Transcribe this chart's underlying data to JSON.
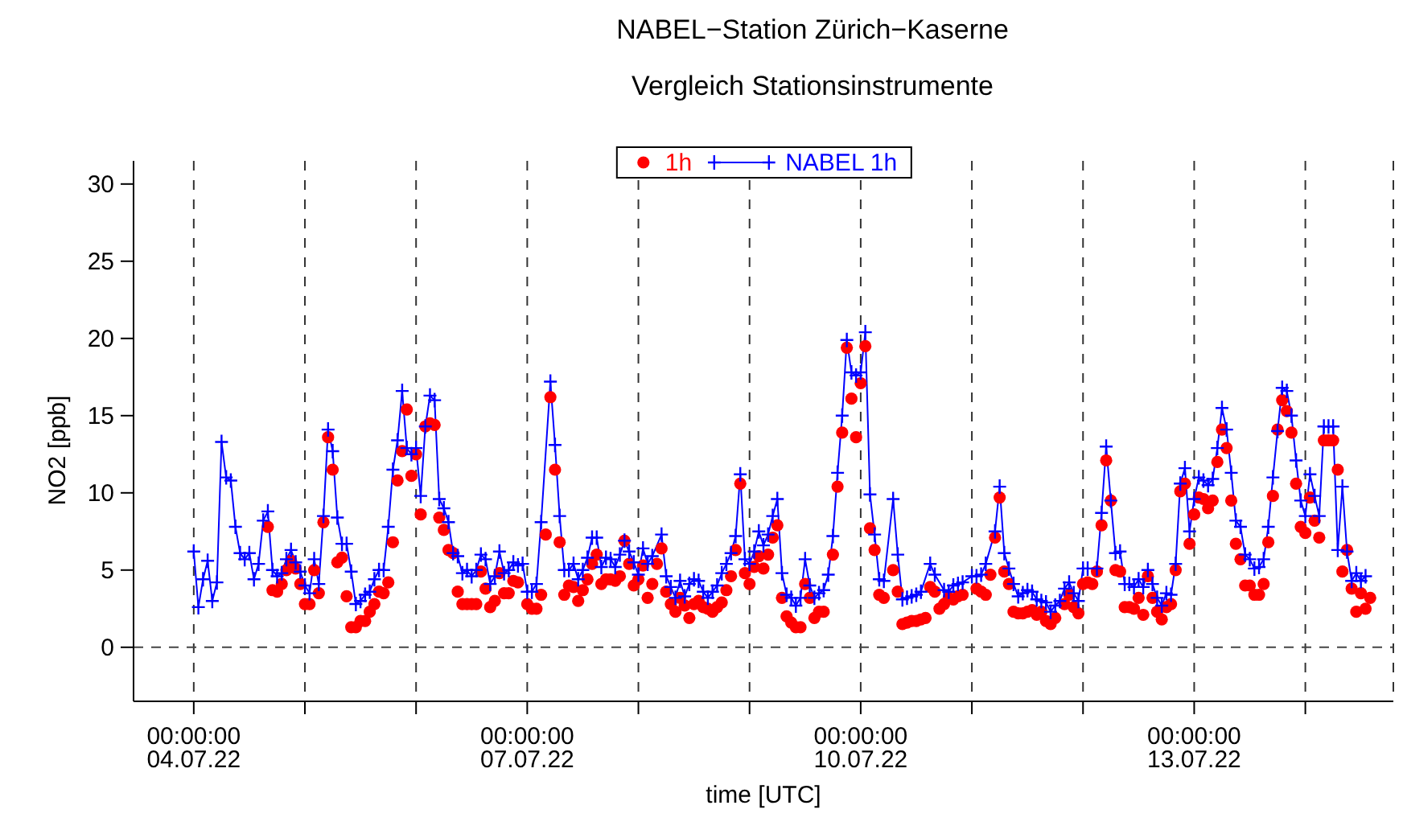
{
  "chart_data": {
    "type": "line",
    "title": "NABEL−Station Zürich−Kaserne",
    "subtitle": "Vergleich Stationsinstrumente",
    "xlabel": "time [UTC]",
    "ylabel": "NO2 [ppb]",
    "xlim": [
      "--07-03T11:00",
      "--07-14T19:00"
    ],
    "xticks": [
      {
        "value": "--07-04T00:00",
        "label": "00:00:00\n04.07.22"
      },
      {
        "value": "--07-05T00:00",
        "label": null
      },
      {
        "value": "--07-06T00:00",
        "label": null
      },
      {
        "value": "--07-07T00:00",
        "label": "00:00:00\n07.07.22"
      },
      {
        "value": "--07-08T00:00",
        "label": null
      },
      {
        "value": "--07-09T00:00",
        "label": null
      },
      {
        "value": "--07-10T00:00",
        "label": "00:00:00\n10.07.22"
      },
      {
        "value": "--07-11T00:00",
        "label": null
      },
      {
        "value": "--07-12T00:00",
        "label": null
      },
      {
        "value": "--07-13T00:00",
        "label": "00:00:00\n13.07.22"
      },
      {
        "value": "--07-14T00:00",
        "label": null
      }
    ],
    "ylim": [
      -3.5,
      31.5
    ],
    "yticks": [
      0,
      5,
      10,
      15,
      20,
      25,
      30
    ],
    "grid": "x",
    "legend": "top",
    "ref_lines": [
      {
        "axis": "y",
        "value": 0,
        "line_style": "dashed",
        "color": "#444444"
      }
    ],
    "series": [
      {
        "name": "1h",
        "type": "scatter",
        "marker": "circle",
        "color": "#ff0000",
        "x": [
          "--07-04T16:00",
          "--07-04T17:00",
          "--07-04T18:00",
          "--07-04T19:00",
          "--07-04T20:00",
          "--07-04T21:00",
          "--07-04T22:00",
          "--07-04T23:00",
          "--07-05T00:00",
          "--07-05T01:00",
          "--07-05T02:00",
          "--07-05T03:00",
          "--07-05T04:00",
          "--07-05T05:00",
          "--07-05T06:00",
          "--07-05T07:00",
          "--07-05T08:00",
          "--07-05T09:00",
          "--07-05T10:00",
          "--07-05T11:00",
          "--07-05T12:00",
          "--07-05T13:00",
          "--07-05T14:00",
          "--07-05T15:00",
          "--07-05T16:00",
          "--07-05T17:00",
          "--07-05T18:00",
          "--07-05T19:00",
          "--07-05T20:00",
          "--07-05T21:00",
          "--07-05T22:00",
          "--07-05T23:00",
          "--07-06T00:00",
          "--07-06T01:00",
          "--07-06T02:00",
          "--07-06T03:00",
          "--07-06T04:00",
          "--07-06T05:00",
          "--07-06T06:00",
          "--07-06T07:00",
          "--07-06T08:00",
          "--07-06T09:00",
          "--07-06T10:00",
          "--07-06T11:00",
          "--07-06T12:00",
          "--07-06T13:00",
          "--07-06T14:00",
          "--07-06T15:00",
          "--07-06T16:00",
          "--07-06T17:00",
          "--07-06T18:00",
          "--07-06T19:00",
          "--07-06T20:00",
          "--07-06T21:00",
          "--07-06T22:00",
          "--07-07T00:00",
          "--07-07T01:00",
          "--07-07T02:00",
          "--07-07T03:00",
          "--07-07T04:00",
          "--07-07T05:00",
          "--07-07T06:00",
          "--07-07T07:00",
          "--07-07T08:00",
          "--07-07T09:00",
          "--07-07T10:00",
          "--07-07T11:00",
          "--07-07T12:00",
          "--07-07T13:00",
          "--07-07T14:00",
          "--07-07T15:00",
          "--07-07T16:00",
          "--07-07T17:00",
          "--07-07T18:00",
          "--07-07T19:00",
          "--07-07T20:00",
          "--07-07T21:00",
          "--07-07T22:00",
          "--07-07T23:00",
          "--07-08T00:00",
          "--07-08T01:00",
          "--07-08T02:00",
          "--07-08T03:00",
          "--07-08T04:00",
          "--07-08T05:00",
          "--07-08T06:00",
          "--07-08T07:00",
          "--07-08T08:00",
          "--07-08T09:00",
          "--07-08T10:00",
          "--07-08T11:00",
          "--07-08T12:00",
          "--07-08T13:00",
          "--07-08T14:00",
          "--07-08T15:00",
          "--07-08T16:00",
          "--07-08T17:00",
          "--07-08T18:00",
          "--07-08T19:00",
          "--07-08T20:00",
          "--07-08T21:00",
          "--07-08T22:00",
          "--07-08T23:00",
          "--07-09T00:00",
          "--07-09T01:00",
          "--07-09T02:00",
          "--07-09T03:00",
          "--07-09T04:00",
          "--07-09T05:00",
          "--07-09T06:00",
          "--07-09T07:00",
          "--07-09T08:00",
          "--07-09T09:00",
          "--07-09T10:00",
          "--07-09T11:00",
          "--07-09T12:00",
          "--07-09T13:00",
          "--07-09T14:00",
          "--07-09T15:00",
          "--07-09T16:00",
          "--07-09T18:00",
          "--07-09T19:00",
          "--07-09T20:00",
          "--07-09T21:00",
          "--07-09T22:00",
          "--07-09T23:00",
          "--07-10T00:00",
          "--07-10T01:00",
          "--07-10T02:00",
          "--07-10T03:00",
          "--07-10T04:00",
          "--07-10T05:00",
          "--07-10T07:00",
          "--07-10T08:00",
          "--07-10T09:00",
          "--07-10T10:00",
          "--07-10T11:00",
          "--07-10T12:00",
          "--07-10T13:00",
          "--07-10T14:00",
          "--07-10T15:00",
          "--07-10T16:00",
          "--07-10T17:00",
          "--07-10T18:00",
          "--07-10T19:00",
          "--07-10T20:00",
          "--07-10T21:00",
          "--07-10T22:00",
          "--07-11T01:00",
          "--07-11T02:00",
          "--07-11T03:00",
          "--07-11T04:00",
          "--07-11T05:00",
          "--07-11T06:00",
          "--07-11T07:00",
          "--07-11T08:00",
          "--07-11T09:00",
          "--07-11T10:00",
          "--07-11T11:00",
          "--07-11T12:00",
          "--07-11T13:00",
          "--07-11T14:00",
          "--07-11T15:00",
          "--07-11T16:00",
          "--07-11T17:00",
          "--07-11T18:00",
          "--07-11T20:00",
          "--07-11T21:00",
          "--07-11T22:00",
          "--07-11T23:00",
          "--07-12T00:00",
          "--07-12T01:00",
          "--07-12T02:00",
          "--07-12T03:00",
          "--07-12T04:00",
          "--07-12T05:00",
          "--07-12T06:00",
          "--07-12T07:00",
          "--07-12T08:00",
          "--07-12T09:00",
          "--07-12T10:00",
          "--07-12T11:00",
          "--07-12T12:00",
          "--07-12T13:00",
          "--07-12T14:00",
          "--07-12T15:00",
          "--07-12T16:00",
          "--07-12T17:00",
          "--07-12T18:00",
          "--07-12T19:00",
          "--07-12T20:00",
          "--07-12T21:00",
          "--07-12T22:00",
          "--07-12T23:00",
          "--07-13T00:00",
          "--07-13T01:00",
          "--07-13T02:00",
          "--07-13T03:00",
          "--07-13T04:00",
          "--07-13T05:00",
          "--07-13T06:00",
          "--07-13T07:00",
          "--07-13T08:00",
          "--07-13T09:00",
          "--07-13T10:00",
          "--07-13T11:00",
          "--07-13T12:00",
          "--07-13T13:00",
          "--07-13T14:00",
          "--07-13T15:00",
          "--07-13T16:00",
          "--07-13T17:00",
          "--07-13T18:00",
          "--07-13T19:00",
          "--07-13T20:00",
          "--07-13T21:00",
          "--07-13T22:00",
          "--07-13T23:00",
          "--07-14T00:00",
          "--07-14T01:00",
          "--07-14T02:00",
          "--07-14T03:00",
          "--07-14T04:00",
          "--07-14T05:00",
          "--07-14T06:00",
          "--07-14T07:00",
          "--07-14T08:00",
          "--07-14T09:00",
          "--07-14T10:00",
          "--07-14T11:00",
          "--07-14T12:00",
          "--07-14T13:00",
          "--07-14T14:00"
        ],
        "values": [
          7.8,
          3.7,
          3.6,
          4.1,
          5.0,
          5.6,
          5.1,
          4.1,
          2.8,
          2.8,
          5.0,
          3.5,
          8.1,
          13.6,
          11.5,
          5.5,
          5.8,
          3.3,
          1.3,
          1.3,
          1.7,
          1.7,
          2.3,
          2.8,
          3.6,
          3.5,
          4.2,
          6.8,
          10.8,
          12.7,
          15.4,
          11.1,
          12.5,
          8.6,
          14.3,
          14.5,
          14.4,
          8.4,
          7.6,
          6.3,
          6.1,
          3.6,
          2.8,
          2.8,
          2.8,
          2.8,
          4.9,
          3.8,
          2.6,
          3.0,
          4.8,
          3.5,
          3.5,
          4.3,
          4.2,
          2.8,
          2.5,
          2.5,
          3.4,
          7.3,
          16.2,
          11.5,
          6.8,
          3.4,
          4.0,
          3.9,
          3.0,
          3.7,
          4.4,
          5.4,
          6.0,
          4.1,
          4.4,
          4.4,
          4.3,
          4.6,
          6.9,
          5.4,
          4.0,
          4.4,
          5.3,
          3.2,
          4.1,
          5.4,
          6.4,
          3.6,
          2.8,
          2.3,
          3.2,
          2.7,
          1.9,
          2.8,
          3.0,
          2.6,
          2.5,
          2.3,
          2.6,
          2.9,
          3.7,
          4.6,
          6.3,
          10.6,
          4.8,
          4.1,
          5.2,
          5.9,
          5.1,
          6.0,
          7.1,
          7.9,
          3.2,
          2.0,
          1.6,
          1.3,
          1.3,
          4.1,
          3.2,
          1.9,
          2.3,
          2.3,
          6.0,
          10.4,
          13.9,
          19.4,
          16.1,
          13.6,
          17.1,
          19.5,
          7.7,
          6.3,
          3.4,
          3.2,
          5.0,
          3.6,
          1.5,
          1.6,
          1.7,
          1.7,
          1.8,
          1.9,
          3.9,
          3.6,
          2.5,
          2.8,
          3.2,
          3.1,
          3.3,
          3.4,
          3.8,
          3.6,
          3.4,
          4.7,
          7.1,
          9.7,
          4.9,
          4.1,
          2.3,
          2.2,
          2.2,
          2.3,
          2.4,
          2.1,
          2.3,
          1.7,
          1.5,
          1.9,
          2.8,
          3.4,
          2.6,
          2.2,
          4.1,
          4.2,
          4.1,
          4.9,
          7.9,
          12.1,
          9.5,
          5.0,
          4.9,
          2.6,
          2.6,
          2.5,
          3.2,
          2.1,
          4.6,
          3.2,
          2.3,
          1.8,
          2.6,
          2.8,
          5.0,
          10.1,
          10.6,
          6.7,
          8.6,
          9.7,
          9.6,
          9.0,
          9.5,
          12.0,
          14.1,
          12.9,
          9.5,
          6.7,
          5.7,
          4.0,
          4.0,
          3.4,
          3.4,
          4.1,
          6.8,
          9.8,
          14.1,
          16.0,
          15.3,
          13.9,
          10.6,
          7.8,
          7.4,
          9.7,
          8.2,
          7.1,
          13.4,
          13.4,
          13.4,
          11.5,
          4.9,
          6.3,
          3.8,
          2.3,
          3.5,
          2.5,
          3.2
        ]
      },
      {
        "name": "NABEL 1h",
        "marker": "cross",
        "line_style": "solid",
        "color": "#0000ff",
        "x": [
          "--07-04T00:00",
          "--07-04T01:00",
          "--07-04T02:00",
          "--07-04T03:00",
          "--07-04T04:00",
          "--07-04T05:00",
          "--07-04T06:00",
          "--07-04T07:00",
          "--07-04T08:00",
          "--07-04T09:00",
          "--07-04T10:00",
          "--07-04T11:00",
          "--07-04T12:00",
          "--07-04T13:00",
          "--07-04T14:00",
          "--07-04T15:00",
          "--07-04T16:00",
          "--07-04T17:00",
          "--07-04T18:00",
          "--07-04T19:00",
          "--07-04T20:00",
          "--07-04T21:00",
          "--07-04T22:00",
          "--07-04T23:00",
          "--07-05T00:00",
          "--07-05T01:00",
          "--07-05T02:00",
          "--07-05T03:00",
          "--07-05T04:00",
          "--07-05T05:00",
          "--07-05T06:00",
          "--07-05T07:00",
          "--07-05T08:00",
          "--07-05T09:00",
          "--07-05T10:00",
          "--07-05T11:00",
          "--07-05T12:00",
          "--07-05T13:00",
          "--07-05T14:00",
          "--07-05T15:00",
          "--07-05T16:00",
          "--07-05T17:00",
          "--07-05T18:00",
          "--07-05T19:00",
          "--07-05T20:00",
          "--07-05T21:00",
          "--07-05T22:00",
          "--07-05T23:00",
          "--07-06T00:00",
          "--07-06T01:00",
          "--07-06T02:00",
          "--07-06T03:00",
          "--07-06T04:00",
          "--07-06T05:00",
          "--07-06T06:00",
          "--07-06T07:00",
          "--07-06T08:00",
          "--07-06T09:00",
          "--07-06T10:00",
          "--07-06T11:00",
          "--07-06T12:00",
          "--07-06T13:00",
          "--07-06T14:00",
          "--07-06T15:00",
          "--07-06T16:00",
          "--07-06T17:00",
          "--07-06T18:00",
          "--07-06T19:00",
          "--07-06T20:00",
          "--07-06T21:00",
          "--07-06T22:00",
          "--07-06T23:00",
          "--07-07T00:00",
          "--07-07T01:00",
          "--07-07T02:00",
          "--07-07T03:00",
          "--07-07T05:00",
          "--07-07T06:00",
          "--07-07T07:00",
          "--07-07T08:00",
          "--07-07T09:00",
          "--07-07T10:00",
          "--07-07T11:00",
          "--07-07T12:00",
          "--07-07T13:00",
          "--07-07T14:00",
          "--07-07T15:00",
          "--07-07T16:00",
          "--07-07T17:00",
          "--07-07T18:00",
          "--07-07T19:00",
          "--07-07T20:00",
          "--07-07T21:00",
          "--07-07T22:00",
          "--07-07T23:00",
          "--07-08T00:00",
          "--07-08T01:00",
          "--07-08T02:00",
          "--07-08T03:00",
          "--07-08T05:00",
          "--07-08T06:00",
          "--07-08T07:00",
          "--07-08T08:00",
          "--07-08T09:00",
          "--07-08T10:00",
          "--07-08T11:00",
          "--07-08T12:00",
          "--07-08T13:00",
          "--07-08T14:00",
          "--07-08T15:00",
          "--07-08T16:00",
          "--07-08T17:00",
          "--07-08T18:00",
          "--07-08T19:00",
          "--07-08T20:00",
          "--07-08T21:00",
          "--07-08T22:00",
          "--07-08T23:00",
          "--07-09T00:00",
          "--07-09T01:00",
          "--07-09T02:00",
          "--07-09T03:00",
          "--07-09T04:00",
          "--07-09T05:00",
          "--07-09T06:00",
          "--07-09T07:00",
          "--07-09T08:00",
          "--07-09T09:00",
          "--07-09T10:00",
          "--07-09T11:00",
          "--07-09T12:00",
          "--07-09T13:00",
          "--07-09T14:00",
          "--07-09T15:00",
          "--07-09T16:00",
          "--07-09T17:00",
          "--07-09T18:00",
          "--07-09T19:00",
          "--07-09T20:00",
          "--07-09T21:00",
          "--07-09T22:00",
          "--07-09T23:00",
          "--07-10T00:00",
          "--07-10T01:00",
          "--07-10T02:00",
          "--07-10T03:00",
          "--07-10T04:00",
          "--07-10T05:00",
          "--07-10T07:00",
          "--07-10T08:00",
          "--07-10T09:00",
          "--07-10T10:00",
          "--07-10T11:00",
          "--07-10T12:00",
          "--07-10T13:00",
          "--07-10T15:00",
          "--07-10T16:00",
          "--07-10T18:00",
          "--07-10T19:00",
          "--07-10T20:00",
          "--07-10T21:00",
          "--07-10T22:00",
          "--07-11T00:00",
          "--07-11T01:00",
          "--07-11T02:00",
          "--07-11T03:00",
          "--07-11T05:00",
          "--07-11T06:00",
          "--07-11T07:00",
          "--07-11T08:00",
          "--07-11T09:00",
          "--07-11T10:00",
          "--07-11T11:00",
          "--07-11T12:00",
          "--07-11T13:00",
          "--07-11T14:00",
          "--07-11T15:00",
          "--07-11T16:00",
          "--07-11T17:00",
          "--07-11T18:00",
          "--07-11T19:00",
          "--07-11T20:00",
          "--07-11T21:00",
          "--07-11T22:00",
          "--07-11T23:00",
          "--07-12T00:00",
          "--07-12T01:00",
          "--07-12T03:00",
          "--07-12T04:00",
          "--07-12T05:00",
          "--07-12T06:00",
          "--07-12T07:00",
          "--07-12T08:00",
          "--07-12T09:00",
          "--07-12T10:00",
          "--07-12T11:00",
          "--07-12T12:00",
          "--07-12T13:00",
          "--07-12T14:00",
          "--07-12T15:00",
          "--07-12T16:00",
          "--07-12T17:00",
          "--07-12T18:00",
          "--07-12T19:00",
          "--07-12T20:00",
          "--07-12T21:00",
          "--07-12T22:00",
          "--07-12T23:00",
          "--07-13T00:00",
          "--07-13T01:00",
          "--07-13T02:00",
          "--07-13T03:00",
          "--07-13T04:00",
          "--07-13T05:00",
          "--07-13T06:00",
          "--07-13T07:00",
          "--07-13T08:00",
          "--07-13T09:00",
          "--07-13T10:00",
          "--07-13T11:00",
          "--07-13T12:00",
          "--07-13T13:00",
          "--07-13T14:00",
          "--07-13T15:00",
          "--07-13T16:00",
          "--07-13T17:00",
          "--07-13T18:00",
          "--07-13T19:00",
          "--07-13T20:00",
          "--07-13T21:00",
          "--07-13T22:00",
          "--07-13T23:00",
          "--07-14T00:00",
          "--07-14T01:00",
          "--07-14T02:00",
          "--07-14T03:00",
          "--07-14T04:00",
          "--07-14T05:00",
          "--07-14T06:00",
          "--07-14T07:00",
          "--07-14T08:00",
          "--07-14T09:00",
          "--07-14T10:00",
          "--07-14T11:00",
          "--07-14T12:00",
          "--07-14T13:00"
        ],
        "values": [
          6.2,
          2.6,
          4.4,
          5.6,
          3.0,
          4.2,
          13.3,
          11.0,
          10.8,
          7.8,
          6.1,
          5.7,
          6.1,
          4.4,
          5.4,
          8.2,
          8.8,
          5.0,
          4.6,
          4.8,
          5.7,
          6.3,
          5.5,
          4.9,
          4.0,
          3.5,
          5.7,
          4.1,
          8.5,
          14.1,
          12.7,
          8.4,
          6.7,
          6.7,
          4.9,
          2.8,
          3.0,
          3.4,
          3.6,
          4.4,
          5.0,
          5.0,
          7.8,
          11.5,
          13.4,
          16.6,
          12.9,
          12.5,
          12.9,
          9.8,
          14.3,
          16.3,
          16.0,
          9.6,
          9.0,
          8.1,
          6.1,
          5.9,
          4.8,
          5.0,
          4.6,
          5.0,
          6.0,
          5.7,
          4.1,
          4.6,
          6.2,
          4.8,
          5.0,
          5.5,
          5.3,
          5.4,
          3.6,
          3.6,
          4.1,
          8.1,
          17.2,
          13.1,
          8.5,
          5.0,
          5.0,
          5.4,
          4.4,
          5.0,
          5.8,
          7.1,
          7.1,
          5.2,
          5.8,
          5.7,
          5.2,
          6.0,
          6.9,
          6.2,
          5.5,
          4.7,
          6.4,
          5.4,
          5.9,
          7.3,
          4.6,
          3.9,
          3.2,
          4.3,
          3.3,
          4.1,
          4.4,
          4.3,
          3.6,
          3.2,
          3.6,
          4.0,
          4.8,
          5.4,
          6.1,
          7.2,
          11.2,
          5.7,
          5.4,
          6.2,
          7.5,
          6.6,
          7.3,
          8.5,
          9.6,
          4.8,
          3.4,
          3.2,
          2.7,
          3.2,
          5.7,
          4.0,
          3.2,
          3.5,
          3.7,
          4.7,
          7.2,
          11.3,
          15.0,
          19.9,
          17.8,
          17.6,
          17.8,
          20.4,
          9.9,
          7.3,
          4.4,
          4.3,
          9.6,
          6.0,
          3.1,
          3.2,
          3.3,
          3.4,
          3.6,
          5.4,
          4.7,
          3.7,
          3.6,
          4.0,
          4.1,
          4.2,
          4.6,
          4.6,
          4.7,
          5.4,
          7.5,
          10.4,
          6.1,
          5.1,
          4.1,
          3.3,
          3.5,
          3.7,
          3.6,
          3.1,
          3.0,
          2.9,
          2.3,
          2.7,
          3.0,
          3.8,
          4.2,
          3.5,
          3.0,
          5.1,
          5.1,
          5.1,
          8.7,
          13.0,
          9.5,
          6.1,
          6.2,
          4.1,
          4.1,
          3.9,
          4.4,
          3.9,
          5.0,
          4.1,
          3.2,
          2.7,
          3.5,
          3.4,
          5.4,
          10.6,
          11.6,
          7.5,
          9.6,
          11.0,
          10.8,
          10.5,
          10.9,
          12.9,
          15.5,
          14.1,
          11.3,
          8.2,
          7.8,
          6.0,
          5.7,
          5.1,
          5.2,
          5.7,
          7.8,
          11.0,
          14.0,
          16.8,
          16.6,
          15.0,
          12.1,
          9.5,
          8.5,
          11.2,
          9.8,
          8.5,
          14.3,
          14.3,
          14.3,
          6.3,
          10.4,
          6.2,
          4.3,
          4.8,
          4.3,
          4.6
        ]
      }
    ]
  }
}
